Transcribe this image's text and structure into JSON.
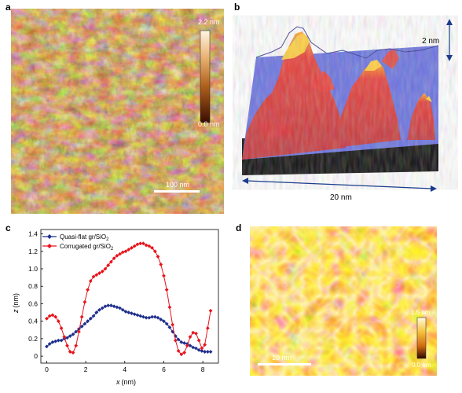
{
  "panels": {
    "a": {
      "label": "a",
      "scalebar": "100 nm",
      "colorbar_max": "2.2 nm",
      "colorbar_min": "0.0 nm"
    },
    "b": {
      "label": "b",
      "height_bar": "2 nm",
      "width_bar": "20 nm"
    },
    "c": {
      "label": "c"
    },
    "d": {
      "label": "d",
      "scalebar": "10 nm",
      "colorbar_max": "1.5 nm",
      "colorbar_min": "0.0 nm"
    }
  },
  "chart_data": {
    "type": "line",
    "xlabel_var": "x",
    "xlabel_unit": "(nm)",
    "ylabel_var": "z",
    "ylabel_unit": "(nm)",
    "xlim": [
      -0.3,
      8.8
    ],
    "ylim": [
      -0.08,
      1.45
    ],
    "xticks": [
      "0",
      "2",
      "4",
      "6",
      "8"
    ],
    "yticks": [
      "0",
      "0.2",
      "0.4",
      "0.6",
      "0.8",
      "1.0",
      "1.2",
      "1.4"
    ],
    "legend_position": "top-left",
    "series": [
      {
        "name_main": "Quasi-flat gr/SiO",
        "name_sub": "2",
        "color": "#1f2f8c",
        "marker": "diamond",
        "x": [
          0.0,
          0.15,
          0.3,
          0.45,
          0.6,
          0.75,
          0.9,
          1.05,
          1.2,
          1.35,
          1.5,
          1.65,
          1.8,
          1.95,
          2.1,
          2.25,
          2.4,
          2.55,
          2.7,
          2.85,
          3.0,
          3.15,
          3.3,
          3.45,
          3.6,
          3.75,
          3.9,
          4.05,
          4.2,
          4.35,
          4.5,
          4.65,
          4.8,
          4.95,
          5.1,
          5.25,
          5.4,
          5.55,
          5.7,
          5.85,
          6.0,
          6.15,
          6.3,
          6.45,
          6.6,
          6.75,
          6.9,
          7.05,
          7.2,
          7.35,
          7.5,
          7.65,
          7.8,
          7.95,
          8.1,
          8.25,
          8.4
        ],
        "y": [
          0.11,
          0.14,
          0.16,
          0.17,
          0.18,
          0.18,
          0.2,
          0.21,
          0.23,
          0.25,
          0.28,
          0.31,
          0.34,
          0.37,
          0.4,
          0.43,
          0.46,
          0.5,
          0.53,
          0.55,
          0.57,
          0.58,
          0.58,
          0.57,
          0.56,
          0.55,
          0.53,
          0.51,
          0.5,
          0.49,
          0.48,
          0.47,
          0.46,
          0.45,
          0.44,
          0.44,
          0.45,
          0.45,
          0.44,
          0.42,
          0.4,
          0.37,
          0.33,
          0.28,
          0.23,
          0.19,
          0.16,
          0.15,
          0.14,
          0.12,
          0.1,
          0.09,
          0.07,
          0.06,
          0.05,
          0.05,
          0.05
        ]
      },
      {
        "name_main": "Corrugated gr/SiO",
        "name_sub": "2",
        "color": "#e8131b",
        "marker": "diamond",
        "x": [
          0.0,
          0.15,
          0.3,
          0.45,
          0.6,
          0.75,
          0.9,
          1.05,
          1.2,
          1.35,
          1.5,
          1.65,
          1.8,
          1.95,
          2.1,
          2.25,
          2.4,
          2.55,
          2.7,
          2.85,
          3.0,
          3.15,
          3.3,
          3.45,
          3.6,
          3.75,
          3.9,
          4.05,
          4.2,
          4.35,
          4.5,
          4.65,
          4.8,
          4.95,
          5.1,
          5.25,
          5.4,
          5.55,
          5.7,
          5.85,
          6.0,
          6.15,
          6.3,
          6.45,
          6.6,
          6.75,
          6.9,
          7.05,
          7.2,
          7.35,
          7.5,
          7.65,
          7.8,
          7.95,
          8.1,
          8.25,
          8.4
        ],
        "y": [
          0.43,
          0.46,
          0.47,
          0.45,
          0.4,
          0.32,
          0.22,
          0.12,
          0.05,
          0.04,
          0.12,
          0.28,
          0.45,
          0.62,
          0.76,
          0.86,
          0.91,
          0.93,
          0.95,
          0.97,
          1.0,
          1.04,
          1.08,
          1.12,
          1.15,
          1.17,
          1.19,
          1.2,
          1.22,
          1.24,
          1.26,
          1.28,
          1.29,
          1.29,
          1.27,
          1.26,
          1.24,
          1.2,
          1.14,
          1.05,
          0.92,
          0.76,
          0.56,
          0.36,
          0.18,
          0.06,
          0.02,
          0.04,
          0.12,
          0.22,
          0.27,
          0.26,
          0.18,
          0.09,
          0.13,
          0.32,
          0.52
        ]
      }
    ]
  }
}
